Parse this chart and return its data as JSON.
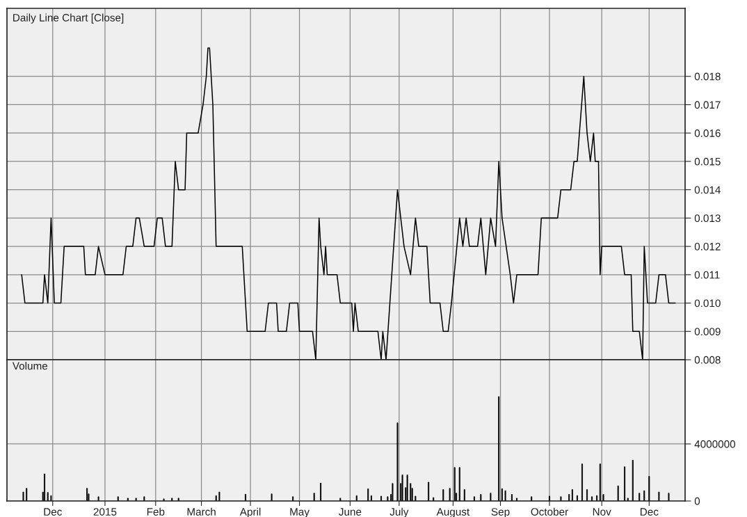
{
  "chart_data": [
    {
      "type": "line",
      "title": "Daily Line Chart [Close]",
      "tick_labels": "y",
      "grid": true,
      "xlim": [
        "2014-11-03",
        "2015-12-23"
      ],
      "ylim": [
        0.008,
        0.0204
      ],
      "xticks": [
        {
          "value": "2014-12-01",
          "label": null
        },
        {
          "value": "2015-01-02",
          "label": null
        },
        {
          "value": "2015-02-02",
          "label": null
        },
        {
          "value": "2015-03-02",
          "label": null
        },
        {
          "value": "2015-04-01",
          "label": null
        },
        {
          "value": "2015-05-01",
          "label": null
        },
        {
          "value": "2015-06-01",
          "label": null
        },
        {
          "value": "2015-07-01",
          "label": null
        },
        {
          "value": "2015-08-03",
          "label": null
        },
        {
          "value": "2015-09-01",
          "label": null
        },
        {
          "value": "2015-10-01",
          "label": null
        },
        {
          "value": "2015-11-02",
          "label": null
        },
        {
          "value": "2015-12-01",
          "label": null
        }
      ],
      "yticks": [
        0.008,
        0.009,
        {
          "value": 0.01,
          "label": "0.010"
        },
        0.011,
        0.012,
        0.013,
        0.014,
        0.015,
        0.016,
        0.017,
        0.018
      ],
      "series": [
        {
          "color": "#000000",
          "x": [
            "2014-11-12",
            "2014-11-14",
            "2014-11-25",
            "2014-11-26",
            "2014-11-28",
            "2014-11-30",
            "2014-12-02",
            "2014-12-06",
            "2014-12-08",
            "2014-12-20",
            "2014-12-21",
            "2014-12-27",
            "2014-12-29",
            "2015-01-02",
            "2015-01-13",
            "2015-01-15",
            "2015-01-19",
            "2015-01-21",
            "2015-01-23",
            "2015-01-26",
            "2015-02-01",
            "2015-02-03",
            "2015-02-06",
            "2015-02-08",
            "2015-02-12",
            "2015-02-14",
            "2015-02-16",
            "2015-02-20",
            "2015-02-21",
            "2015-02-28",
            "2015-03-03",
            "2015-03-05",
            "2015-03-06",
            "2015-03-07",
            "2015-03-08",
            "2015-03-09",
            "2015-03-11",
            "2015-03-27",
            "2015-03-30",
            "2015-04-10",
            "2015-04-12",
            "2015-04-17",
            "2015-04-18",
            "2015-04-23",
            "2015-04-25",
            "2015-04-30",
            "2015-05-01",
            "2015-05-09",
            "2015-05-11",
            "2015-05-13",
            "2015-05-14",
            "2015-05-16",
            "2015-05-17",
            "2015-05-18",
            "2015-05-24",
            "2015-05-26",
            "2015-06-02",
            "2015-06-03",
            "2015-06-04",
            "2015-06-06",
            "2015-06-18",
            "2015-06-20",
            "2015-06-21",
            "2015-06-23",
            "2015-06-30",
            "2015-07-04",
            "2015-07-08",
            "2015-07-11",
            "2015-07-13",
            "2015-07-18",
            "2015-07-20",
            "2015-07-26",
            "2015-07-28",
            "2015-07-31",
            "2015-08-02",
            "2015-08-07",
            "2015-08-09",
            "2015-08-11",
            "2015-08-13",
            "2015-08-18",
            "2015-08-20",
            "2015-08-23",
            "2015-08-26",
            "2015-08-29",
            "2015-08-31",
            "2015-09-02",
            "2015-09-07",
            "2015-09-09",
            "2015-09-11",
            "2015-09-24",
            "2015-09-26",
            "2015-10-06",
            "2015-10-08",
            "2015-10-14",
            "2015-10-16",
            "2015-10-18",
            "2015-10-22",
            "2015-10-24",
            "2015-10-26",
            "2015-10-28",
            "2015-10-29",
            "2015-10-31",
            "2015-11-01",
            "2015-11-02",
            "2015-11-14",
            "2015-11-16",
            "2015-11-20",
            "2015-11-21",
            "2015-11-25",
            "2015-11-27",
            "2015-11-28",
            "2015-11-30",
            "2015-12-05",
            "2015-12-07",
            "2015-12-11",
            "2015-12-13",
            "2015-12-17"
          ],
          "values": [
            0.011,
            0.01,
            0.01,
            0.011,
            0.01,
            0.013,
            0.01,
            0.01,
            0.012,
            0.012,
            0.011,
            0.011,
            0.012,
            0.011,
            0.011,
            0.012,
            0.012,
            0.013,
            0.013,
            0.012,
            0.012,
            0.013,
            0.013,
            0.012,
            0.012,
            0.015,
            0.014,
            0.014,
            0.016,
            0.016,
            0.017,
            0.018,
            0.019,
            0.019,
            0.018,
            0.017,
            0.012,
            0.012,
            0.009,
            0.009,
            0.01,
            0.01,
            0.009,
            0.009,
            0.01,
            0.01,
            0.009,
            0.009,
            0.008,
            0.013,
            0.012,
            0.011,
            0.012,
            0.011,
            0.011,
            0.01,
            0.01,
            0.009,
            0.01,
            0.009,
            0.009,
            0.008,
            0.009,
            0.008,
            0.014,
            0.012,
            0.011,
            0.013,
            0.012,
            0.012,
            0.01,
            0.01,
            0.009,
            0.009,
            0.01,
            0.013,
            0.012,
            0.013,
            0.012,
            0.012,
            0.013,
            0.011,
            0.013,
            0.012,
            0.015,
            0.013,
            0.011,
            0.01,
            0.011,
            0.011,
            0.013,
            0.013,
            0.014,
            0.014,
            0.015,
            0.015,
            0.018,
            0.016,
            0.015,
            0.016,
            0.015,
            0.015,
            0.011,
            0.012,
            0.012,
            0.011,
            0.011,
            0.009,
            0.009,
            0.008,
            0.012,
            0.01,
            0.01,
            0.011,
            0.011,
            0.01,
            0.01
          ]
        }
      ]
    },
    {
      "type": "bar",
      "title": "Volume",
      "grid": true,
      "xlim": [
        "2014-11-03",
        "2015-12-23"
      ],
      "ylim": [
        0,
        9900000
      ],
      "xticks": [
        {
          "value": "2014-12-01",
          "label": "Dec"
        },
        {
          "value": "2015-01-02",
          "label": "2015"
        },
        {
          "value": "2015-02-02",
          "label": "Feb"
        },
        {
          "value": "2015-03-02",
          "label": "March"
        },
        {
          "value": "2015-04-01",
          "label": "April"
        },
        {
          "value": "2015-05-01",
          "label": "May"
        },
        {
          "value": "2015-06-01",
          "label": "June"
        },
        {
          "value": "2015-07-01",
          "label": "July"
        },
        {
          "value": "2015-08-03",
          "label": "August"
        },
        {
          "value": "2015-09-01",
          "label": "Sep"
        },
        {
          "value": "2015-10-01",
          "label": "October"
        },
        {
          "value": "2015-11-02",
          "label": "Nov"
        },
        {
          "value": "2015-12-01",
          "label": "Dec"
        }
      ],
      "yticks": [
        0,
        4000000
      ],
      "series": [
        {
          "color": "#000000",
          "x": [
            "2014-11-13",
            "2014-11-15",
            "2014-11-25",
            "2014-11-26",
            "2014-11-28",
            "2014-11-30",
            "2014-12-22",
            "2014-12-23",
            "2014-12-29",
            "2015-01-10",
            "2015-01-16",
            "2015-01-21",
            "2015-01-26",
            "2015-02-07",
            "2015-02-12",
            "2015-02-16",
            "2015-03-11",
            "2015-03-13",
            "2015-03-29",
            "2015-04-14",
            "2015-04-27",
            "2015-05-10",
            "2015-05-14",
            "2015-05-26",
            "2015-06-05",
            "2015-06-12",
            "2015-06-14",
            "2015-06-20",
            "2015-06-24",
            "2015-06-26",
            "2015-06-27",
            "2015-06-30",
            "2015-07-02",
            "2015-07-03",
            "2015-07-05",
            "2015-07-06",
            "2015-07-08",
            "2015-07-09",
            "2015-07-11",
            "2015-07-19",
            "2015-07-22",
            "2015-07-28",
            "2015-08-01",
            "2015-08-04",
            "2015-08-05",
            "2015-08-07",
            "2015-08-10",
            "2015-08-16",
            "2015-08-20",
            "2015-08-26",
            "2015-08-31",
            "2015-09-02",
            "2015-09-04",
            "2015-09-08",
            "2015-09-11",
            "2015-09-20",
            "2015-10-01",
            "2015-10-08",
            "2015-10-13",
            "2015-10-15",
            "2015-10-18",
            "2015-10-21",
            "2015-10-24",
            "2015-10-27",
            "2015-10-30",
            "2015-11-01",
            "2015-11-03",
            "2015-11-12",
            "2015-11-16",
            "2015-11-18",
            "2015-11-21",
            "2015-11-25",
            "2015-11-28",
            "2015-12-01",
            "2015-12-07",
            "2015-12-13"
          ],
          "values": [
            630000,
            890000,
            630000,
            1900000,
            600000,
            370000,
            890000,
            500000,
            300000,
            300000,
            200000,
            200000,
            300000,
            150000,
            200000,
            200000,
            370000,
            630000,
            470000,
            500000,
            300000,
            550000,
            1250000,
            200000,
            370000,
            850000,
            370000,
            340000,
            300000,
            460000,
            1230000,
            5480000,
            1230000,
            1830000,
            940000,
            1830000,
            1230000,
            890000,
            340000,
            1320000,
            240000,
            800000,
            890000,
            2350000,
            550000,
            2350000,
            800000,
            300000,
            460000,
            550000,
            7320000,
            860000,
            720000,
            460000,
            200000,
            300000,
            340000,
            300000,
            460000,
            800000,
            380000,
            2600000,
            800000,
            300000,
            380000,
            2600000,
            460000,
            1060000,
            2400000,
            200000,
            2860000,
            550000,
            720000,
            1730000,
            630000,
            550000
          ]
        }
      ]
    }
  ]
}
